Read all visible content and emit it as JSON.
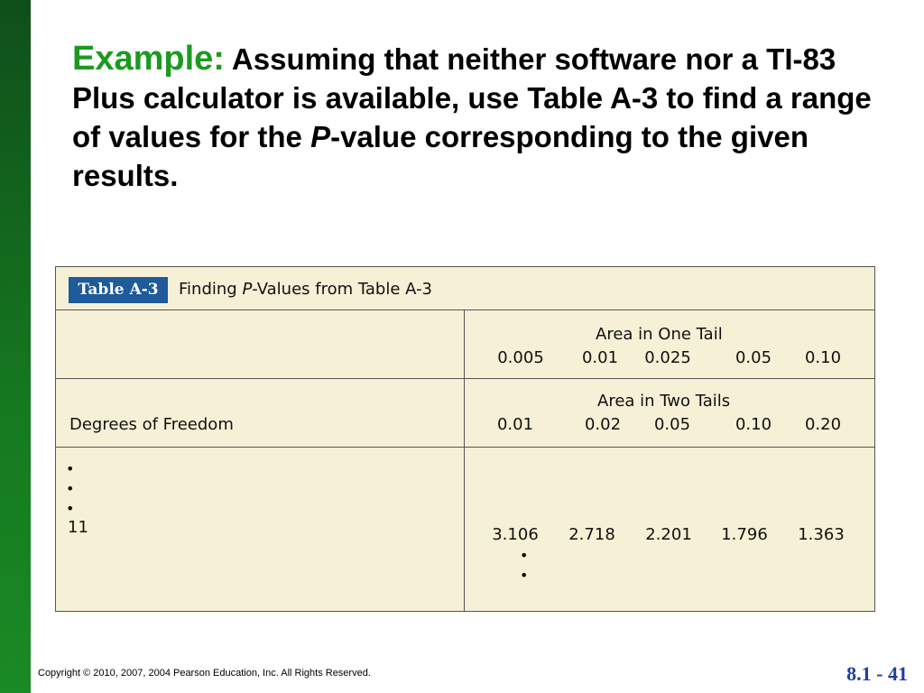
{
  "title": {
    "lead": "Example:",
    "text_before_p": " Assuming that neither software nor a TI-83 Plus calculator is available, use Table A-3 to find a range of values for the ",
    "p_letter": "P",
    "text_after_p": "-value corresponding to the given results."
  },
  "table": {
    "badge": "Table A-3",
    "caption_before": "Finding ",
    "caption_p": "P",
    "caption_after": "-Values from Table A-3",
    "one_tail": {
      "label": "Area in One Tail",
      "values": [
        "0.005",
        "0.01",
        "0.025",
        "0.05",
        "0.10"
      ]
    },
    "two_tails": {
      "label": "Area in Two Tails",
      "values": [
        "0.01",
        "0.02",
        "0.05",
        "0.10",
        "0.20"
      ]
    },
    "df_label": "Degrees of Freedom",
    "dots": [
      "•",
      "•",
      "•"
    ],
    "df_value": "11",
    "row_values": [
      "3.106",
      "2.718",
      "2.201",
      "1.796",
      "1.363"
    ],
    "col_dots": [
      "•",
      "•"
    ]
  },
  "footer": {
    "copyright": "Copyright © 2010, 2007, 2004 Pearson Education, Inc. All Rights Reserved.",
    "slide_number": "8.1 - 41"
  }
}
